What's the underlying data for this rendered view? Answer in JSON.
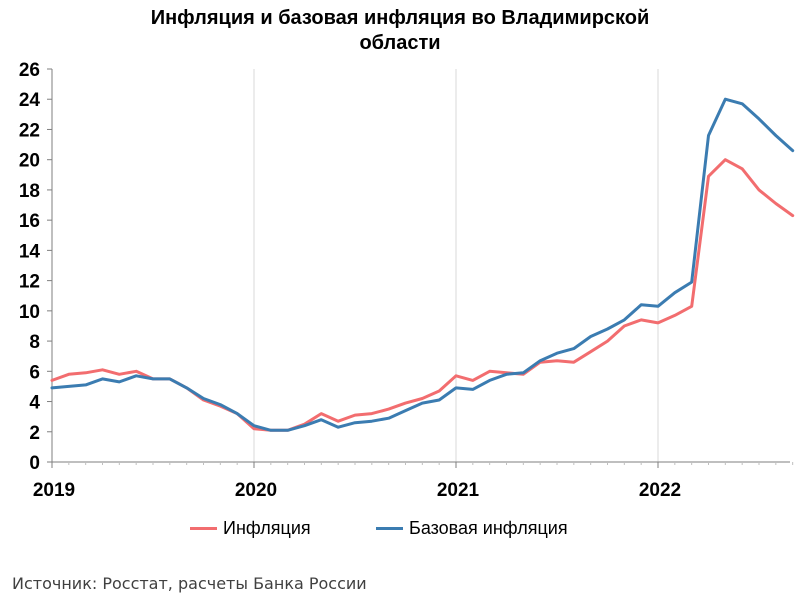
{
  "chart_data": {
    "type": "line",
    "title_line1": "Инфляция и базовая инфляция во Владимирской",
    "title_line2": "области",
    "ylim": [
      0,
      26
    ],
    "yticks": [
      "0",
      "2",
      "4",
      "6",
      "8",
      "10",
      "12",
      "14",
      "16",
      "18",
      "20",
      "22",
      "24",
      "26"
    ],
    "xticks": [
      "2019",
      "2020",
      "2021",
      "2022"
    ],
    "grid": "vertical",
    "legend_position": "bottom",
    "series": [
      {
        "name": "Инфляция",
        "color": "#F26D6F",
        "values": [
          5.4,
          5.8,
          5.9,
          6.1,
          5.8,
          6.0,
          5.5,
          5.5,
          4.9,
          4.1,
          3.7,
          3.2,
          2.2,
          2.1,
          2.1,
          2.5,
          3.2,
          2.7,
          3.1,
          3.2,
          3.5,
          3.9,
          4.2,
          4.7,
          5.7,
          5.4,
          6.0,
          5.9,
          5.8,
          6.6,
          6.7,
          6.6,
          7.3,
          8.0,
          9.0,
          9.4,
          9.2,
          9.7,
          10.3,
          18.9,
          20.0,
          19.4,
          18.0,
          17.1,
          16.3
        ]
      },
      {
        "name": "Базовая инфляция",
        "color": "#3B7CB1",
        "values": [
          4.9,
          5.0,
          5.1,
          5.5,
          5.3,
          5.7,
          5.5,
          5.5,
          4.9,
          4.2,
          3.8,
          3.2,
          2.4,
          2.1,
          2.1,
          2.4,
          2.8,
          2.3,
          2.6,
          2.7,
          2.9,
          3.4,
          3.9,
          4.1,
          4.9,
          4.8,
          5.4,
          5.8,
          5.9,
          6.7,
          7.2,
          7.5,
          8.3,
          8.8,
          9.4,
          10.4,
          10.3,
          11.2,
          11.9,
          21.6,
          24.0,
          23.7,
          22.7,
          21.6,
          20.6
        ]
      }
    ]
  },
  "source": "Источник: Росстат, расчеты Банка России"
}
